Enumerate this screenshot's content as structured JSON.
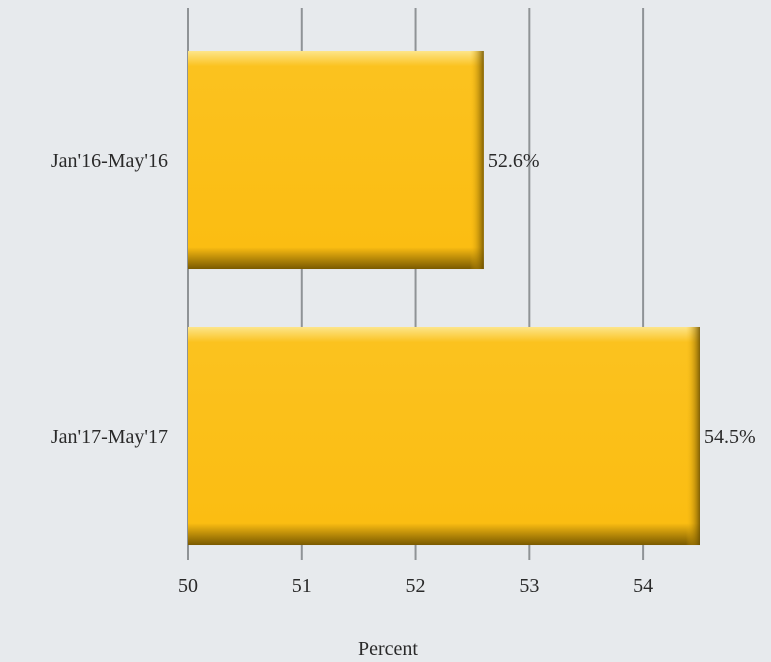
{
  "chart_data": {
    "type": "bar",
    "orientation": "horizontal",
    "categories": [
      "Jan'16-May'16",
      "Jan'17-May'17"
    ],
    "values": [
      52.6,
      54.5
    ],
    "data_labels": [
      "52.6%",
      "54.5%"
    ],
    "xlabel": "Percent",
    "ylabel": "",
    "xlim": [
      50,
      54.5
    ],
    "ticks": [
      50,
      51,
      52,
      53,
      54
    ],
    "tick_labels": [
      "50",
      "51",
      "52",
      "53",
      "54"
    ],
    "grid": "vertical",
    "legend": "none",
    "colors": {
      "background": "#e7eaed",
      "bar": "#fbbd12",
      "bar_highlight": "#fde58a",
      "bar_shadow": "#6b4f00",
      "grid": "#8f9396",
      "text": "#2a2a2a"
    }
  }
}
